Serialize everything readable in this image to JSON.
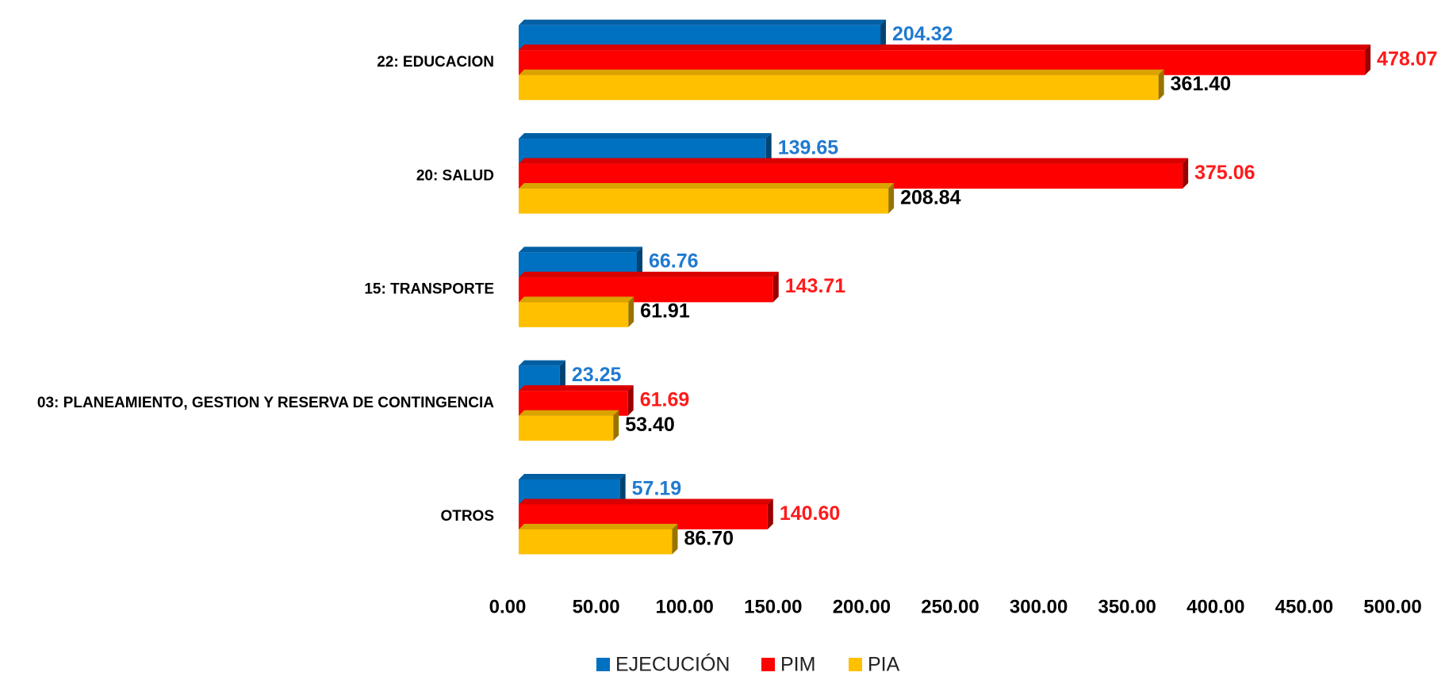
{
  "chart_data": {
    "type": "bar",
    "orientation": "horizontal",
    "categories": [
      "22: EDUCACION",
      "20: SALUD",
      "15: TRANSPORTE",
      "03: PLANEAMIENTO, GESTION Y RESERVA DE CONTINGENCIA",
      "OTROS"
    ],
    "series": [
      {
        "name": "EJECUCIÓN",
        "color": "#0070c0",
        "label_color": "#1f7ad0",
        "values": [
          204.32,
          139.65,
          66.76,
          23.25,
          57.19
        ],
        "value_labels": [
          "204.32",
          "139.65",
          "66.76",
          "23.25",
          "57.19"
        ]
      },
      {
        "name": "PIM",
        "color": "#ff0000",
        "label_color": "#ff1a1a",
        "values": [
          478.07,
          375.06,
          143.71,
          61.69,
          140.6
        ],
        "value_labels": [
          "478.07",
          "375.06",
          "143.71",
          "61.69",
          "140.60"
        ]
      },
      {
        "name": "PIA",
        "color": "#ffc000",
        "label_color": "#000000",
        "values": [
          361.4,
          208.84,
          61.91,
          53.4,
          86.7
        ],
        "value_labels": [
          "361.40",
          "208.84",
          "61.91",
          "53.40",
          "86.70"
        ]
      }
    ],
    "xlim": [
      0,
      500
    ],
    "xticks": [
      {
        "value": 0,
        "label": "0.00"
      },
      {
        "value": 50,
        "label": "50.00"
      },
      {
        "value": 100,
        "label": "100.00"
      },
      {
        "value": 150,
        "label": "150.00"
      },
      {
        "value": 200,
        "label": "200.00"
      },
      {
        "value": 250,
        "label": "250.00"
      },
      {
        "value": 300,
        "label": "300.00"
      },
      {
        "value": 350,
        "label": "350.00"
      },
      {
        "value": 400,
        "label": "400.00"
      },
      {
        "value": 450,
        "label": "450.00"
      },
      {
        "value": 500,
        "label": "500.00"
      }
    ],
    "grid": false,
    "legend": "bottom"
  }
}
